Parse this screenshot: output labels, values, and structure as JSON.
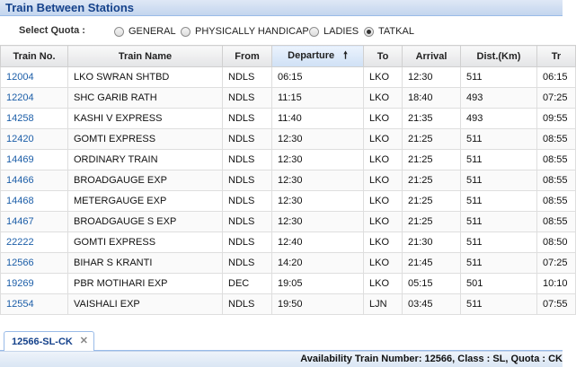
{
  "window": {
    "title": "Train Between Stations"
  },
  "quota": {
    "label": "Select Quota :",
    "options": [
      {
        "label": "GENERAL",
        "checked": false
      },
      {
        "label": "PHYSICALLY HANDICAP",
        "checked": false
      },
      {
        "label": "LADIES",
        "checked": false
      },
      {
        "label": "TATKAL",
        "checked": true
      }
    ]
  },
  "table": {
    "headers": [
      "Train No.",
      "Train Name",
      "From",
      "Departure",
      "To",
      "Arrival",
      "Dist.(Km)",
      "Tr"
    ],
    "sorted_column": "Departure",
    "sort_direction": "ascending",
    "rows": [
      [
        "12004",
        "LKO SWRAN SHTBD",
        "NDLS",
        "06:15",
        "LKO",
        "12:30",
        "511",
        "06:15"
      ],
      [
        "12204",
        "SHC GARIB RATH",
        "NDLS",
        "11:15",
        "LKO",
        "18:40",
        "493",
        "07:25"
      ],
      [
        "14258",
        "KASHI V EXPRESS",
        "NDLS",
        "11:40",
        "LKO",
        "21:35",
        "493",
        "09:55"
      ],
      [
        "12420",
        "GOMTI EXPRESS",
        "NDLS",
        "12:30",
        "LKO",
        "21:25",
        "511",
        "08:55"
      ],
      [
        "14469",
        "ORDINARY TRAIN",
        "NDLS",
        "12:30",
        "LKO",
        "21:25",
        "511",
        "08:55"
      ],
      [
        "14466",
        "BROADGAUGE EXP",
        "NDLS",
        "12:30",
        "LKO",
        "21:25",
        "511",
        "08:55"
      ],
      [
        "14468",
        "METERGAUGE EXP",
        "NDLS",
        "12:30",
        "LKO",
        "21:25",
        "511",
        "08:55"
      ],
      [
        "14467",
        "BROADGAUGE S EXP",
        "NDLS",
        "12:30",
        "LKO",
        "21:25",
        "511",
        "08:55"
      ],
      [
        "22222",
        "GOMTI EXPRESS",
        "NDLS",
        "12:40",
        "LKO",
        "21:30",
        "511",
        "08:50"
      ],
      [
        "12566",
        "BIHAR S KRANTI",
        "NDLS",
        "14:20",
        "LKO",
        "21:45",
        "511",
        "07:25"
      ],
      [
        "19269",
        "PBR MOTIHARI EXP",
        "DEC",
        "19:05",
        "LKO",
        "05:15",
        "501",
        "10:10"
      ],
      [
        "12554",
        "VAISHALI EXP",
        "NDLS",
        "19:50",
        "LJN",
        "03:45",
        "511",
        "07:55"
      ]
    ]
  },
  "tabs": [
    {
      "label": "12566-SL-CK",
      "close_icon": "close-icon"
    }
  ],
  "status": {
    "text": "Availability Train Number: 12566, Class : SL, Quota : CK"
  }
}
